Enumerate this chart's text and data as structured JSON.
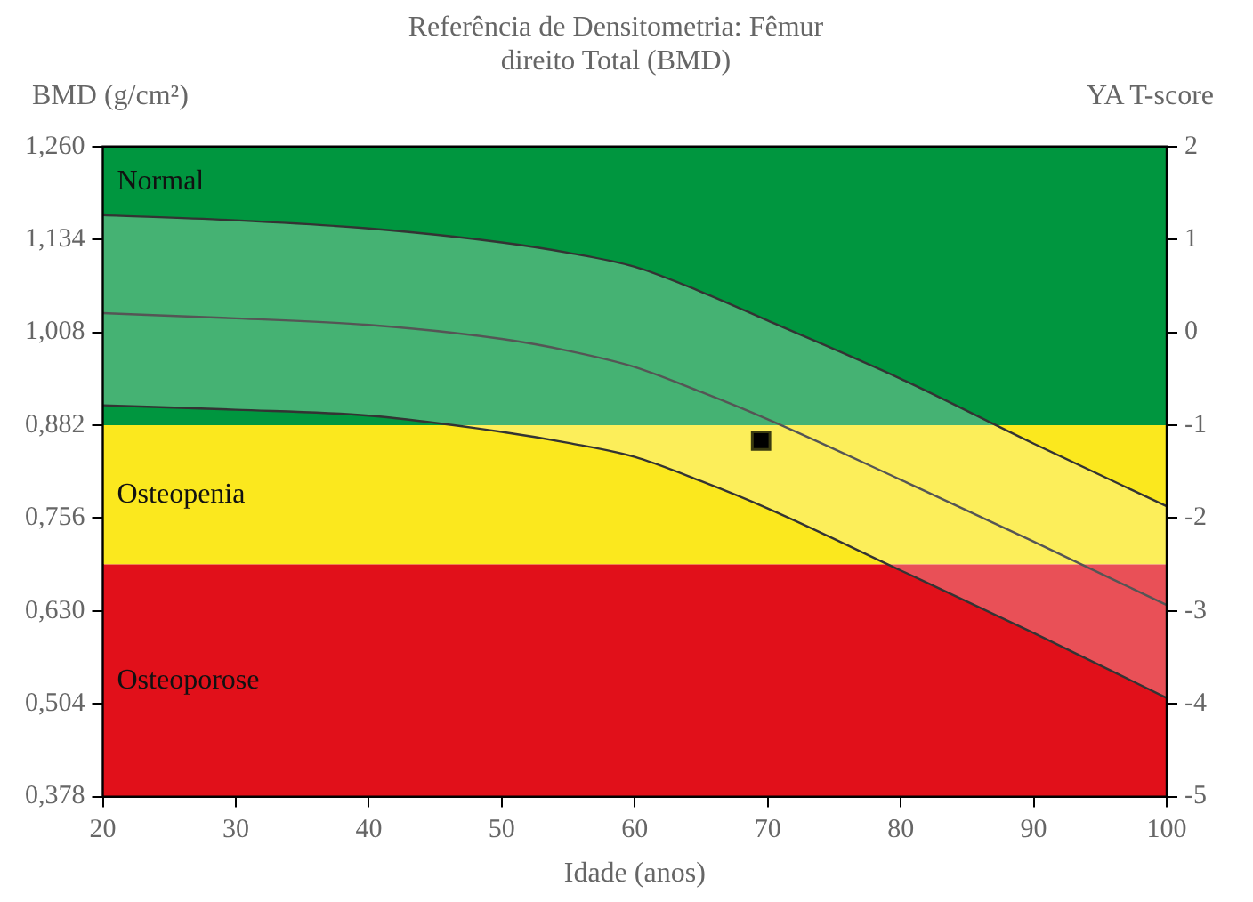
{
  "chart_data": {
    "type": "line",
    "title": "Referência de Densitometria: Fêmur\ndireito Total (BMD)",
    "xlabel": "Idade (anos)",
    "ylabel": "BMD (g/cm²)",
    "y2label": "YA T-score",
    "x": [
      20,
      30,
      40,
      50,
      55,
      60,
      65,
      70,
      80,
      90,
      100
    ],
    "series": [
      {
        "color": "#333333",
        "marker": "none",
        "values": [
          1.167,
          1.16,
          1.149,
          1.13,
          1.116,
          1.097,
          1.063,
          1.024,
          0.945,
          0.857,
          0.772
        ]
      },
      {
        "color": "#333333",
        "marker": "none",
        "values": [
          0.909,
          0.903,
          0.895,
          0.873,
          0.858,
          0.839,
          0.806,
          0.769,
          0.685,
          0.6,
          0.512
        ]
      },
      {
        "color": "#555555",
        "marker": "none",
        "values": [
          1.034,
          1.027,
          1.018,
          0.999,
          0.983,
          0.961,
          0.927,
          0.89,
          0.808,
          0.724,
          0.638
        ],
        "upper": [
          1.167,
          1.16,
          1.149,
          1.13,
          1.116,
          1.097,
          1.063,
          1.024,
          0.945,
          0.857,
          0.772
        ],
        "lower": [
          0.909,
          0.903,
          0.895,
          0.873,
          0.858,
          0.839,
          0.806,
          0.769,
          0.685,
          0.6,
          0.512
        ]
      },
      {
        "type": "scatter",
        "color": "#000000",
        "marker": "square",
        "x": [
          69.5
        ],
        "values": [
          0.861
        ]
      }
    ],
    "bands": [
      {
        "axis": "y",
        "from": 0.882,
        "to": 1.26,
        "label": "Normal",
        "color": "#00963f"
      },
      {
        "axis": "y",
        "from": 0.693,
        "to": 0.882,
        "label": "Osteopenia",
        "color": "#fbe81e"
      },
      {
        "axis": "y",
        "from": 0.378,
        "to": 0.693,
        "label": "Osteoporose",
        "color": "#e1101a"
      }
    ],
    "xlim": [
      20,
      100
    ],
    "xticks": [
      20,
      30,
      40,
      50,
      60,
      70,
      80,
      90,
      100
    ],
    "ylim": [
      0.378,
      1.26
    ],
    "yticks": [
      {
        "value": 0.378,
        "label": "0,378"
      },
      {
        "value": 0.504,
        "label": "0,504"
      },
      {
        "value": 0.63,
        "label": "0,630"
      },
      {
        "value": 0.756,
        "label": "0,756"
      },
      {
        "value": 0.882,
        "label": "0,882"
      },
      {
        "value": 1.008,
        "label": "1,008"
      },
      {
        "value": 1.134,
        "label": "1,134"
      },
      {
        "value": 1.26,
        "label": "1,260"
      }
    ],
    "y2lim": [
      -5,
      2
    ],
    "y2ticks": [
      -5,
      -4,
      -3,
      -2,
      -1,
      0,
      1,
      2
    ],
    "legend": false
  }
}
